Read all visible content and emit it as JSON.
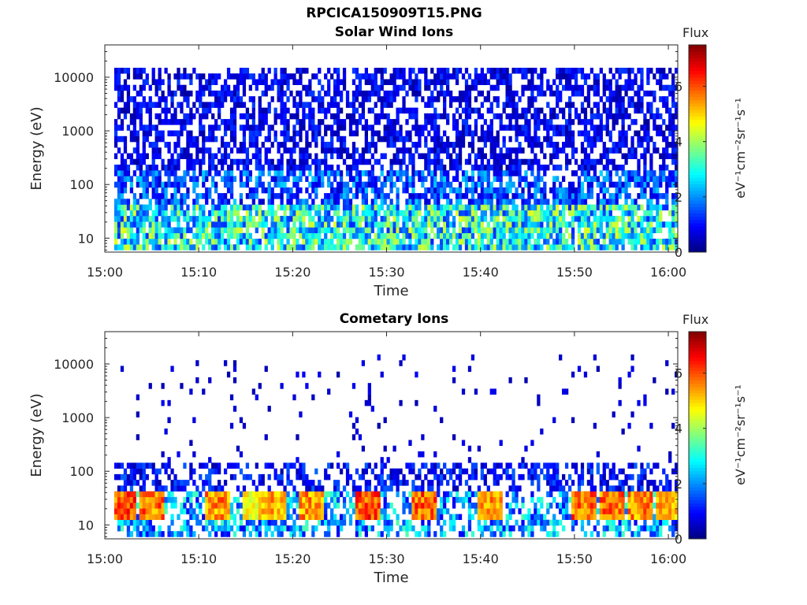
{
  "figure": {
    "title": "RPCICA150909T15.PNG"
  },
  "chart_data": [
    {
      "type": "heatmap",
      "title": "Solar Wind Ions",
      "xlabel": "Time",
      "ylabel": "Energy (eV)",
      "x_ticks": [
        "15:00",
        "15:10",
        "15:20",
        "15:30",
        "15:40",
        "15:50",
        "16:00"
      ],
      "xlim": [
        "15:00",
        "16:01"
      ],
      "y_scale": "log",
      "y_ticks": [
        10,
        100,
        1000,
        10000
      ],
      "y_tick_labels": [
        "10",
        "100",
        "1000",
        "10000"
      ],
      "ylim": [
        5.5,
        40000
      ],
      "colorbar": {
        "label": "Flux",
        "unit_label": "eV⁻¹cm⁻²sr⁻¹s⁻¹",
        "ticks": [
          0,
          2,
          4,
          6
        ],
        "range": [
          0,
          7.5
        ],
        "colormap": "jet"
      },
      "description_values": {
        "high_energy_cutoff_eV": 15000,
        "low_energy_band_eV": [
          7,
          35
        ],
        "peak_flux_low_band": 4.5,
        "typical_flux_high_band": 0.8
      }
    },
    {
      "type": "heatmap",
      "title": "Cometary Ions",
      "xlabel": "Time",
      "ylabel": "Energy (eV)",
      "x_ticks": [
        "15:00",
        "15:10",
        "15:20",
        "15:30",
        "15:40",
        "15:50",
        "16:00"
      ],
      "xlim": [
        "15:00",
        "16:01"
      ],
      "y_scale": "log",
      "y_ticks": [
        10,
        100,
        1000,
        10000
      ],
      "y_tick_labels": [
        "10",
        "100",
        "1000",
        "10000"
      ],
      "ylim": [
        5.5,
        40000
      ],
      "colorbar": {
        "label": "Flux",
        "unit_label": "eV⁻¹cm⁻²sr⁻¹s⁻¹",
        "ticks": [
          0,
          2,
          4,
          6
        ],
        "range": [
          0,
          7.5
        ],
        "colormap": "jet"
      },
      "bursts": [
        {
          "time": "15:02",
          "peak_flux": 6.8
        },
        {
          "time": "15:05",
          "peak_flux": 6.5
        },
        {
          "time": "15:12",
          "peak_flux": 6.3
        },
        {
          "time": "15:16",
          "peak_flux": 5.5
        },
        {
          "time": "15:18",
          "peak_flux": 6.0
        },
        {
          "time": "15:22",
          "peak_flux": 6.2
        },
        {
          "time": "15:28",
          "peak_flux": 6.8
        },
        {
          "time": "15:34",
          "peak_flux": 6.7
        },
        {
          "time": "15:41",
          "peak_flux": 6.2
        },
        {
          "time": "15:51",
          "peak_flux": 6.6
        },
        {
          "time": "15:54",
          "peak_flux": 6.5
        },
        {
          "time": "15:57",
          "peak_flux": 6.3
        },
        {
          "time": "16:00",
          "peak_flux": 6.0
        }
      ],
      "low_energy_band_eV": [
        12,
        40
      ],
      "sparse_noise_above_eV": 120
    }
  ]
}
